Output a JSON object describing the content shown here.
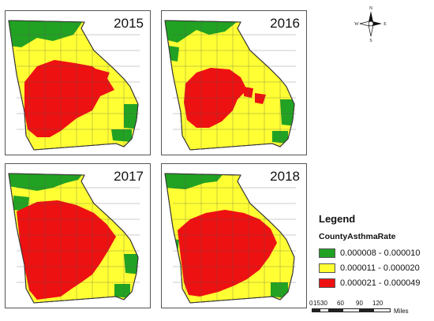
{
  "panels": [
    {
      "year": "2015"
    },
    {
      "year": "2016"
    },
    {
      "year": "2017"
    },
    {
      "year": "2018"
    }
  ],
  "compass": {
    "n": "N",
    "s": "S",
    "e": "E",
    "w": "W"
  },
  "legend": {
    "title": "Legend",
    "field": "CountyAsthmaRate",
    "classes": [
      {
        "label": "0.000008 - 0.000010",
        "color": "#22a222"
      },
      {
        "label": "0.000011 - 0.000020",
        "color": "#ffff33"
      },
      {
        "label": "0.000021 - 0.000049",
        "color": "#ee1111"
      }
    ]
  },
  "scalebar": {
    "labels": [
      "0",
      "15",
      "30",
      "60",
      "90",
      "120"
    ],
    "unit": "Miles"
  },
  "colors": {
    "green": "#22a222",
    "yellow": "#ffff33",
    "red": "#ee1111",
    "border": "#555555"
  }
}
